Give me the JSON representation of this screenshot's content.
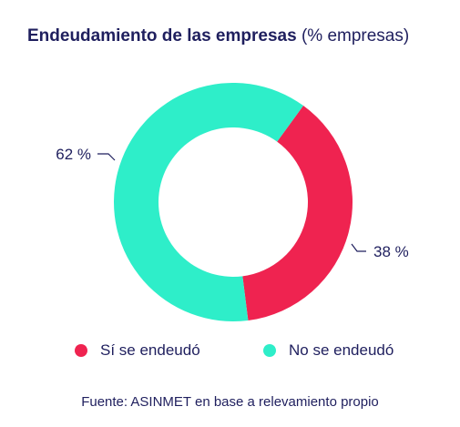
{
  "title": {
    "bold": "Endeudamiento de las empresas",
    "light": "(% empresas)"
  },
  "chart_data": {
    "type": "pie",
    "donut": true,
    "title": "Endeudamiento de las empresas (% empresas)",
    "categories": [
      "Sí se endeudó",
      "No se endeudó"
    ],
    "values": [
      38,
      62
    ],
    "value_labels": [
      "38 %",
      "62 %"
    ],
    "colors": [
      "#ef2350",
      "#2eeec9"
    ],
    "legend_position": "bottom"
  },
  "legend": {
    "items": [
      {
        "label": "Sí se endeudó",
        "color": "#ef2350"
      },
      {
        "label": "No se endeudó",
        "color": "#2eeec9"
      }
    ]
  },
  "source": "Fuente: ASINMET en base a relevamiento propio",
  "colors": {
    "text": "#1f1f5e",
    "leader_line": "#1f1f5e"
  }
}
